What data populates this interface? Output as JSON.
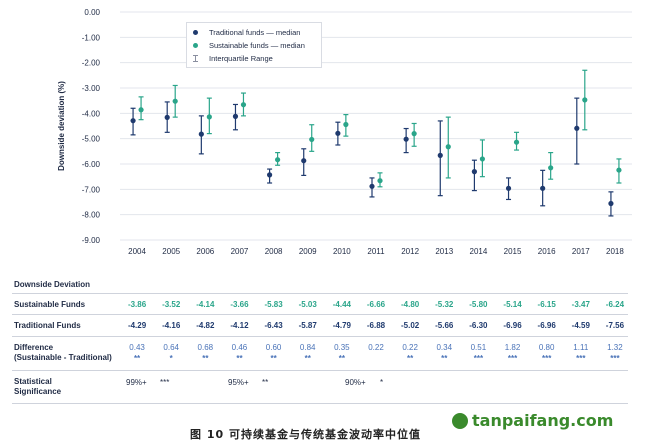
{
  "chart_data": {
    "type": "scatter",
    "ylabel": "Downside deviation (%)",
    "ylim": [
      -9.0,
      0.0
    ],
    "yticks": [
      "0.00",
      "-1.00",
      "-2.00",
      "-3.00",
      "-4.00",
      "-5.00",
      "-6.00",
      "-7.00",
      "-8.00",
      "-9.00"
    ],
    "categories": [
      "2004",
      "2005",
      "2006",
      "2007",
      "2008",
      "2009",
      "2010",
      "2011",
      "2012",
      "2013",
      "2014",
      "2015",
      "2016",
      "2017",
      "2018"
    ],
    "series": [
      {
        "name": "Traditional funds — median",
        "values": [
          -4.29,
          -4.16,
          -4.82,
          -4.12,
          -6.43,
          -5.87,
          -4.79,
          -6.88,
          -5.02,
          -5.66,
          -6.3,
          -6.96,
          -6.96,
          -4.59,
          -7.56
        ],
        "iqr_high": [
          -3.8,
          -3.55,
          -4.1,
          -3.65,
          -6.2,
          -5.4,
          -4.35,
          -6.55,
          -4.6,
          -4.3,
          -5.85,
          -6.55,
          -6.25,
          -3.4,
          -7.1
        ],
        "iqr_low": [
          -4.85,
          -4.75,
          -5.6,
          -4.65,
          -6.75,
          -6.45,
          -5.25,
          -7.3,
          -5.55,
          -7.25,
          -7.05,
          -7.4,
          -7.65,
          -6.0,
          -8.05
        ],
        "color": "#1f3a6e"
      },
      {
        "name": "Sustainable funds — median",
        "values": [
          -3.86,
          -3.52,
          -4.14,
          -3.66,
          -5.83,
          -5.03,
          -4.44,
          -6.66,
          -4.8,
          -5.32,
          -5.8,
          -5.14,
          -6.15,
          -3.47,
          -6.24
        ],
        "iqr_high": [
          -3.35,
          -2.9,
          -3.4,
          -3.2,
          -5.55,
          -4.45,
          -4.05,
          -6.35,
          -4.4,
          -4.15,
          -5.05,
          -4.75,
          -5.55,
          -2.3,
          -5.8
        ],
        "iqr_low": [
          -4.25,
          -4.15,
          -4.8,
          -4.1,
          -6.05,
          -5.5,
          -4.9,
          -6.9,
          -5.3,
          -6.55,
          -6.5,
          -5.45,
          -6.6,
          -4.65,
          -6.75
        ],
        "color": "#2aa58a"
      }
    ],
    "legend": {
      "traditional": "Traditional funds — median",
      "sustainable": "Sustainable funds — median",
      "iqr": "Interquartile Range",
      "placement": "top-left"
    }
  },
  "table": {
    "title": "Downside Deviation",
    "labels": {
      "sustainable": "Sustainable Funds",
      "traditional": "Traditional Funds",
      "difference_1": "Difference",
      "difference_2": "(Sustainable - Traditional)",
      "significance_1": "Statistical",
      "significance_2": "Significance"
    },
    "sustainable": [
      "-3.86",
      "-3.52",
      "-4.14",
      "-3.66",
      "-5.83",
      "-5.03",
      "-4.44",
      "-6.66",
      "-4.80",
      "-5.32",
      "-5.80",
      "-5.14",
      "-6.15",
      "-3.47",
      "-6.24"
    ],
    "traditional": [
      "-4.29",
      "-4.16",
      "-4.82",
      "-4.12",
      "-6.43",
      "-5.87",
      "-4.79",
      "-6.88",
      "-5.02",
      "-5.66",
      "-6.30",
      "-6.96",
      "-6.96",
      "-4.59",
      "-7.56"
    ],
    "difference": [
      "0.43",
      "0.64",
      "0.68",
      "0.46",
      "0.60",
      "0.84",
      "0.35",
      "0.22",
      "0.22",
      "0.34",
      "0.51",
      "1.82",
      "0.80",
      "1.11",
      "1.32"
    ],
    "difference_stars": [
      "**",
      "*",
      "**",
      "**",
      "**",
      "**",
      "**",
      "",
      "**",
      "**",
      "***",
      "***",
      "***",
      "***",
      "***"
    ],
    "significance_legend": [
      {
        "level": "99%+",
        "stars": "***"
      },
      {
        "level": "95%+",
        "stars": "**"
      },
      {
        "level": "90%+",
        "stars": "*"
      }
    ]
  },
  "caption": "图 10 可持续基金与传统基金波动率中位值",
  "watermark": "tanpaifang.com"
}
